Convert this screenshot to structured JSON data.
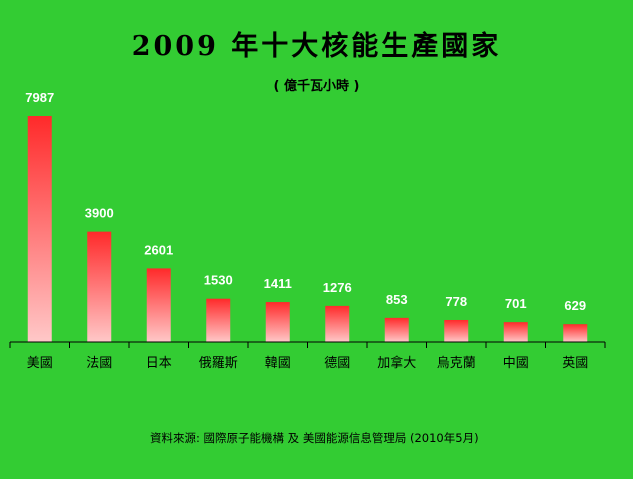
{
  "chart_data": {
    "type": "bar",
    "title": "2009 年十大核能生產國家",
    "subtitle": "( 億千瓦小時 )",
    "categories": [
      "美國",
      "法國",
      "日本",
      "俄羅斯",
      "韓國",
      "德國",
      "加拿大",
      "烏克蘭",
      "中國",
      "英國"
    ],
    "values": [
      7987,
      3900,
      2601,
      1530,
      1411,
      1276,
      853,
      778,
      701,
      629
    ],
    "value_labels": [
      "7987",
      "3900",
      "2601",
      "1530",
      "1411",
      "1276",
      "853",
      "778",
      "701",
      "629"
    ],
    "ylim": [
      0,
      7987
    ],
    "grid": false,
    "legend": "none",
    "bar_color_top": "#ff2a2a",
    "bar_color_bottom": "#ffc8c8"
  },
  "source": "資料來源: 國際原子能機構 及 美國能源信息管理局 (2010年5月)"
}
